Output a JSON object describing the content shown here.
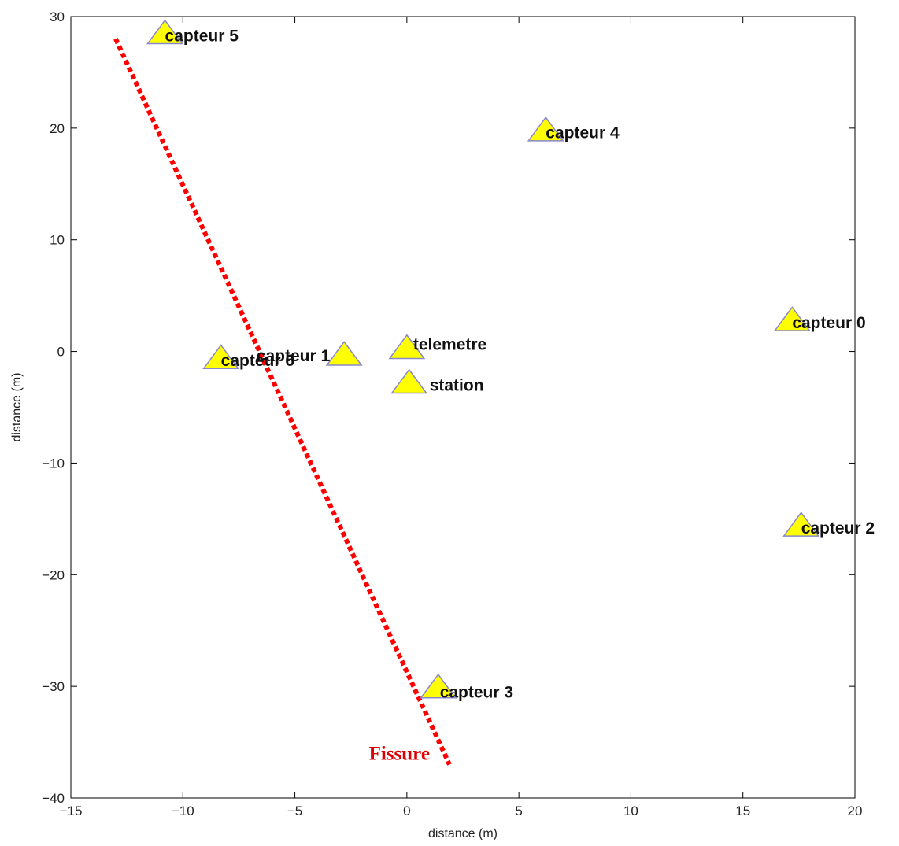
{
  "chart_data": {
    "type": "scatter",
    "title": "",
    "xlabel": "distance (m)",
    "ylabel": "distance (m)",
    "xlim": [
      -15,
      20
    ],
    "ylim": [
      -40,
      30
    ],
    "xticks": [
      -15,
      -10,
      -5,
      0,
      5,
      10,
      15,
      20
    ],
    "yticks": [
      -40,
      -30,
      -20,
      -10,
      0,
      10,
      20,
      30
    ],
    "xtick_labels": [
      "−15",
      "−10",
      "−5",
      "0",
      "5",
      "10",
      "15",
      "20"
    ],
    "ytick_labels": [
      "−40",
      "−30",
      "−20",
      "−10",
      "0",
      "10",
      "20",
      "30"
    ],
    "grid": false,
    "points": [
      {
        "label": "capteur 5",
        "x": -10.8,
        "y": 28.5
      },
      {
        "label": "capteur 4",
        "x": 6.2,
        "y": 19.8
      },
      {
        "label": "capteur 0",
        "x": 17.2,
        "y": 2.8
      },
      {
        "label": "capteur 1",
        "x": -2.8,
        "y": -0.3
      },
      {
        "label": "telemetre",
        "x": 0.0,
        "y": 0.3
      },
      {
        "label": "capteur 6",
        "x": -8.3,
        "y": -0.6
      },
      {
        "label": "station",
        "x": 0.1,
        "y": -2.8
      },
      {
        "label": "capteur 2",
        "x": 17.6,
        "y": -15.6
      },
      {
        "label": "capteur 3",
        "x": 1.4,
        "y": -30.1
      }
    ],
    "fissure_line": {
      "label": "Fissure",
      "x": [
        -13.0,
        1.9
      ],
      "y": [
        28.0,
        -37.0
      ]
    },
    "colors": {
      "marker_fill": "#ffff00",
      "marker_edge": "#8888cc",
      "line": "#ff0000",
      "line_label": "#dd0000",
      "axes": "#000000"
    }
  }
}
